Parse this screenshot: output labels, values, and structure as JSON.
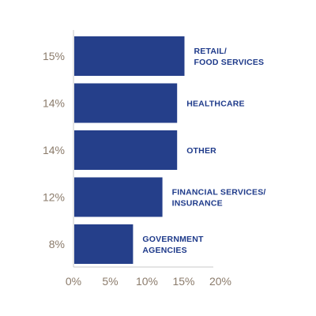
{
  "chart_data": {
    "type": "bar",
    "orientation": "horizontal",
    "categories": [
      [
        "RETAIL/",
        "FOOD SERVICES"
      ],
      [
        "HEALTHCARE"
      ],
      [
        "OTHER"
      ],
      [
        "FINANCIAL SERVICES/",
        "INSURANCE"
      ],
      [
        "GOVERNMENT",
        "AGENCIES"
      ]
    ],
    "values": [
      15,
      14,
      14,
      12,
      8
    ],
    "value_labels": [
      "15%",
      "14%",
      "14%",
      "12%",
      "8%"
    ],
    "x_ticks": [
      0,
      5,
      10,
      15,
      20
    ],
    "x_tick_labels": [
      "0%",
      "5%",
      "10%",
      "15%",
      "20%"
    ],
    "xlim": [
      0,
      20
    ],
    "grid": false,
    "legend": "none"
  },
  "colors": {
    "bar": "#253f8a",
    "bar_label": "#1e3a8a",
    "value_label": "#8b7b6b",
    "tick_label": "#8b7b6b",
    "axis": "#c9c9c9"
  }
}
